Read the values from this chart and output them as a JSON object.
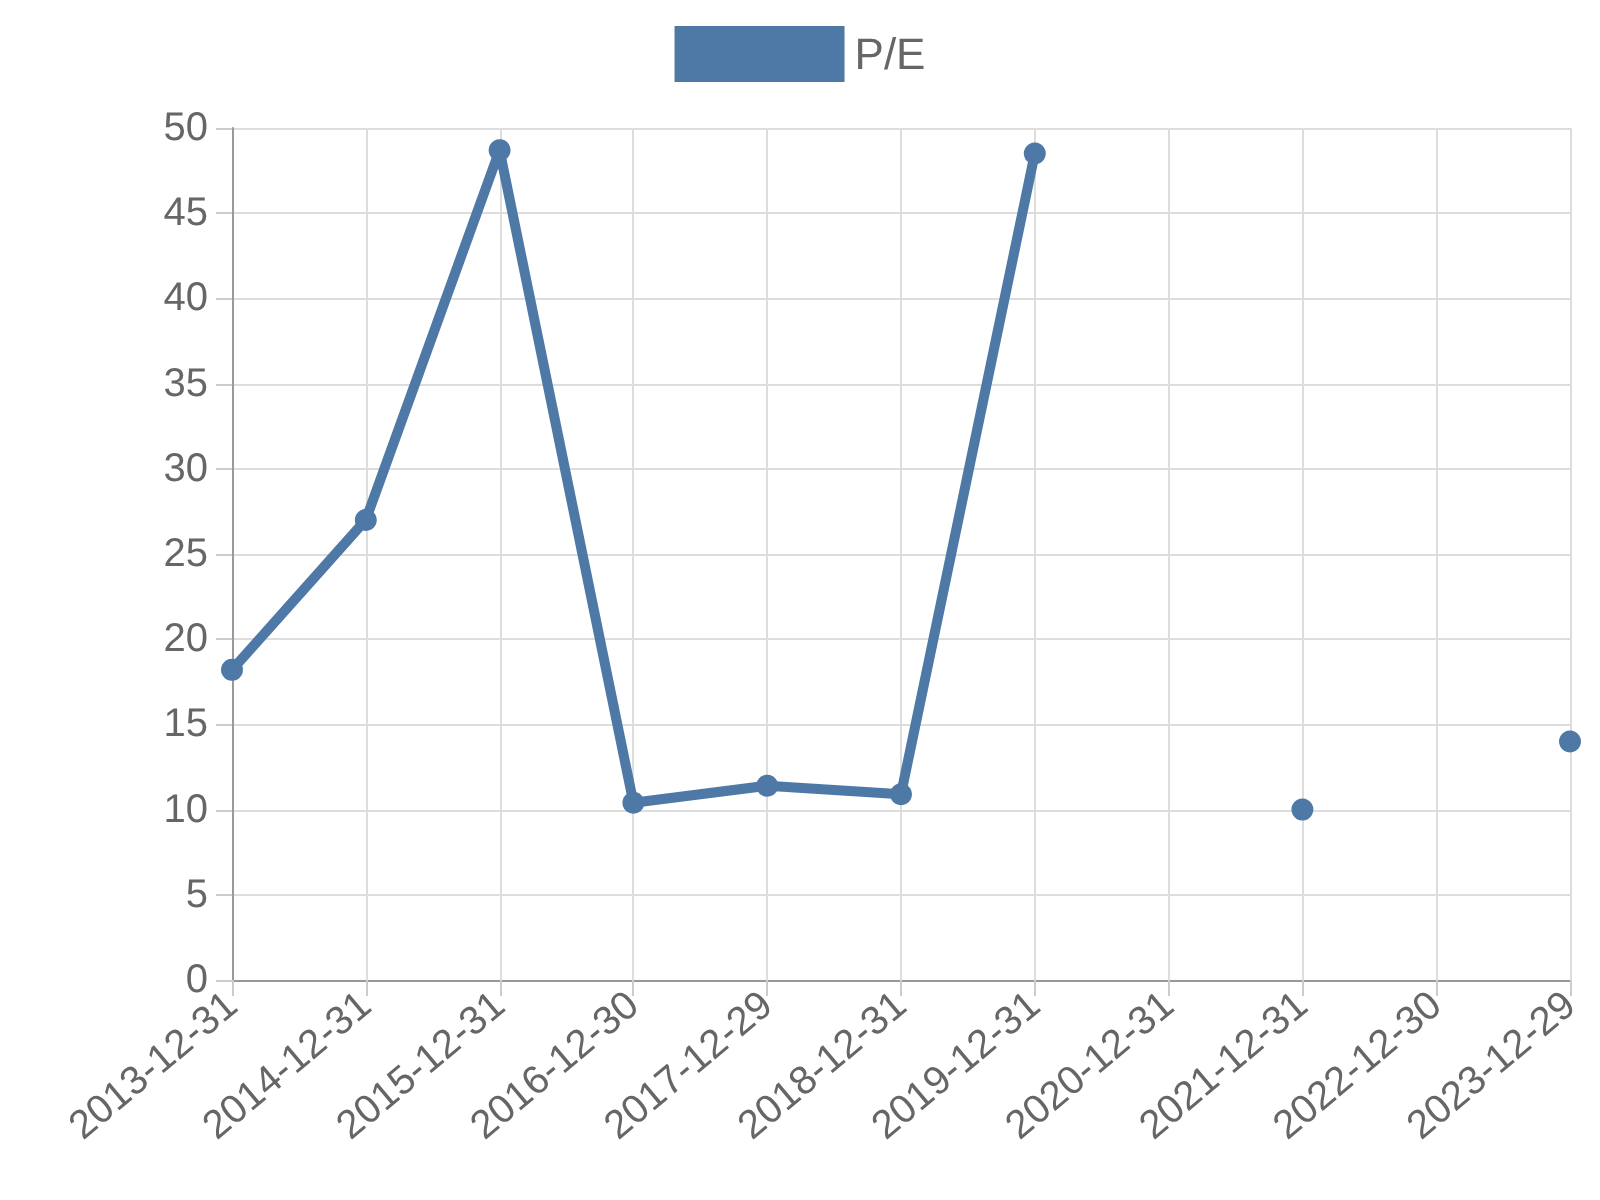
{
  "chart_data": {
    "type": "line",
    "categories": [
      "2013-12-31",
      "2014-12-31",
      "2015-12-31",
      "2016-12-30",
      "2017-12-29",
      "2018-12-31",
      "2019-12-31",
      "2020-12-31",
      "2021-12-31",
      "2022-12-30",
      "2023-12-29"
    ],
    "series": [
      {
        "name": "P/E",
        "color": "#4e79a7",
        "values": [
          18.2,
          27.0,
          48.7,
          10.4,
          11.4,
          10.9,
          48.5,
          null,
          10.0,
          null,
          14.0
        ]
      }
    ],
    "ylim": [
      0,
      50
    ],
    "yticks": [
      0,
      5,
      10,
      15,
      20,
      25,
      30,
      35,
      40,
      45,
      50
    ],
    "grid": true,
    "legend": "top",
    "marker": "circle",
    "line_style": "solid"
  }
}
